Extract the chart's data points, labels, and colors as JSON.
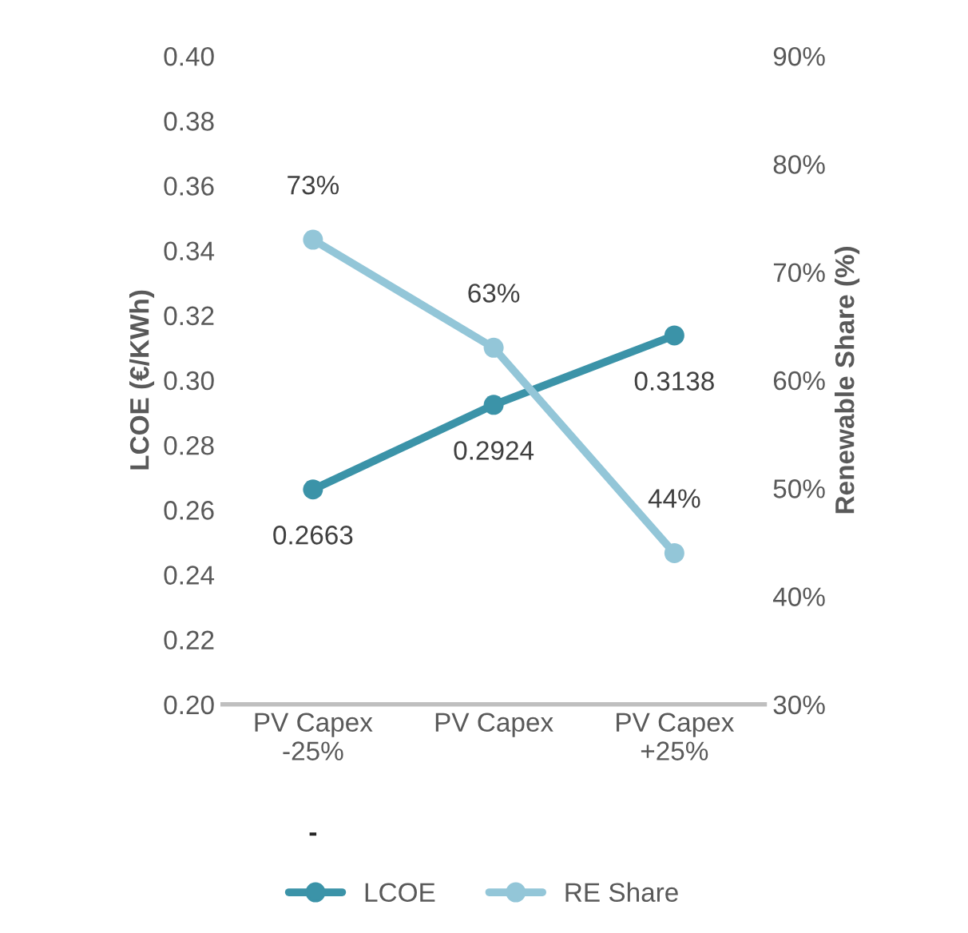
{
  "chart_data": {
    "type": "line",
    "categories": [
      "PV Capex -25%",
      "PV Capex",
      "PV Capex +25%"
    ],
    "ylabel": "LCOE (€/KWh)",
    "y2label": "Renewable Share (%)",
    "series": [
      {
        "name": "LCOE",
        "color": "#3b93a8",
        "values": [
          0.2663,
          0.2924,
          0.3138
        ],
        "value_labels": [
          "0.2663",
          "0.2924",
          "0.3138"
        ]
      },
      {
        "name": "RE Share",
        "color": "#93c6d8",
        "values": [
          73,
          63,
          44
        ],
        "axis": "y2",
        "value_labels": [
          "73%",
          "63%",
          "44%"
        ]
      }
    ],
    "ylim": [
      0.2,
      0.4
    ],
    "yticks": [
      {
        "value": 0.2,
        "label": "0.20"
      },
      {
        "value": 0.22,
        "label": "0.22"
      },
      {
        "value": 0.24,
        "label": "0.24"
      },
      {
        "value": 0.26,
        "label": "0.26"
      },
      {
        "value": 0.28,
        "label": "0.28"
      },
      {
        "value": 0.3,
        "label": "0.30"
      },
      {
        "value": 0.32,
        "label": "0.32"
      },
      {
        "value": 0.34,
        "label": "0.34"
      },
      {
        "value": 0.36,
        "label": "0.36"
      },
      {
        "value": 0.38,
        "label": "0.38"
      },
      {
        "value": 0.4,
        "label": "0.40"
      }
    ],
    "y2lim": [
      30,
      90
    ],
    "y2ticks": [
      {
        "value": 30,
        "label": "30%"
      },
      {
        "value": 40,
        "label": "40%"
      },
      {
        "value": 50,
        "label": "50%"
      },
      {
        "value": 60,
        "label": "60%"
      },
      {
        "value": 70,
        "label": "70%"
      },
      {
        "value": 80,
        "label": "80%"
      },
      {
        "value": 90,
        "label": "90%"
      }
    ],
    "annotations": [
      "-"
    ],
    "marker": "circle",
    "line_style": "solid",
    "grid": false,
    "legend": "bottom"
  }
}
